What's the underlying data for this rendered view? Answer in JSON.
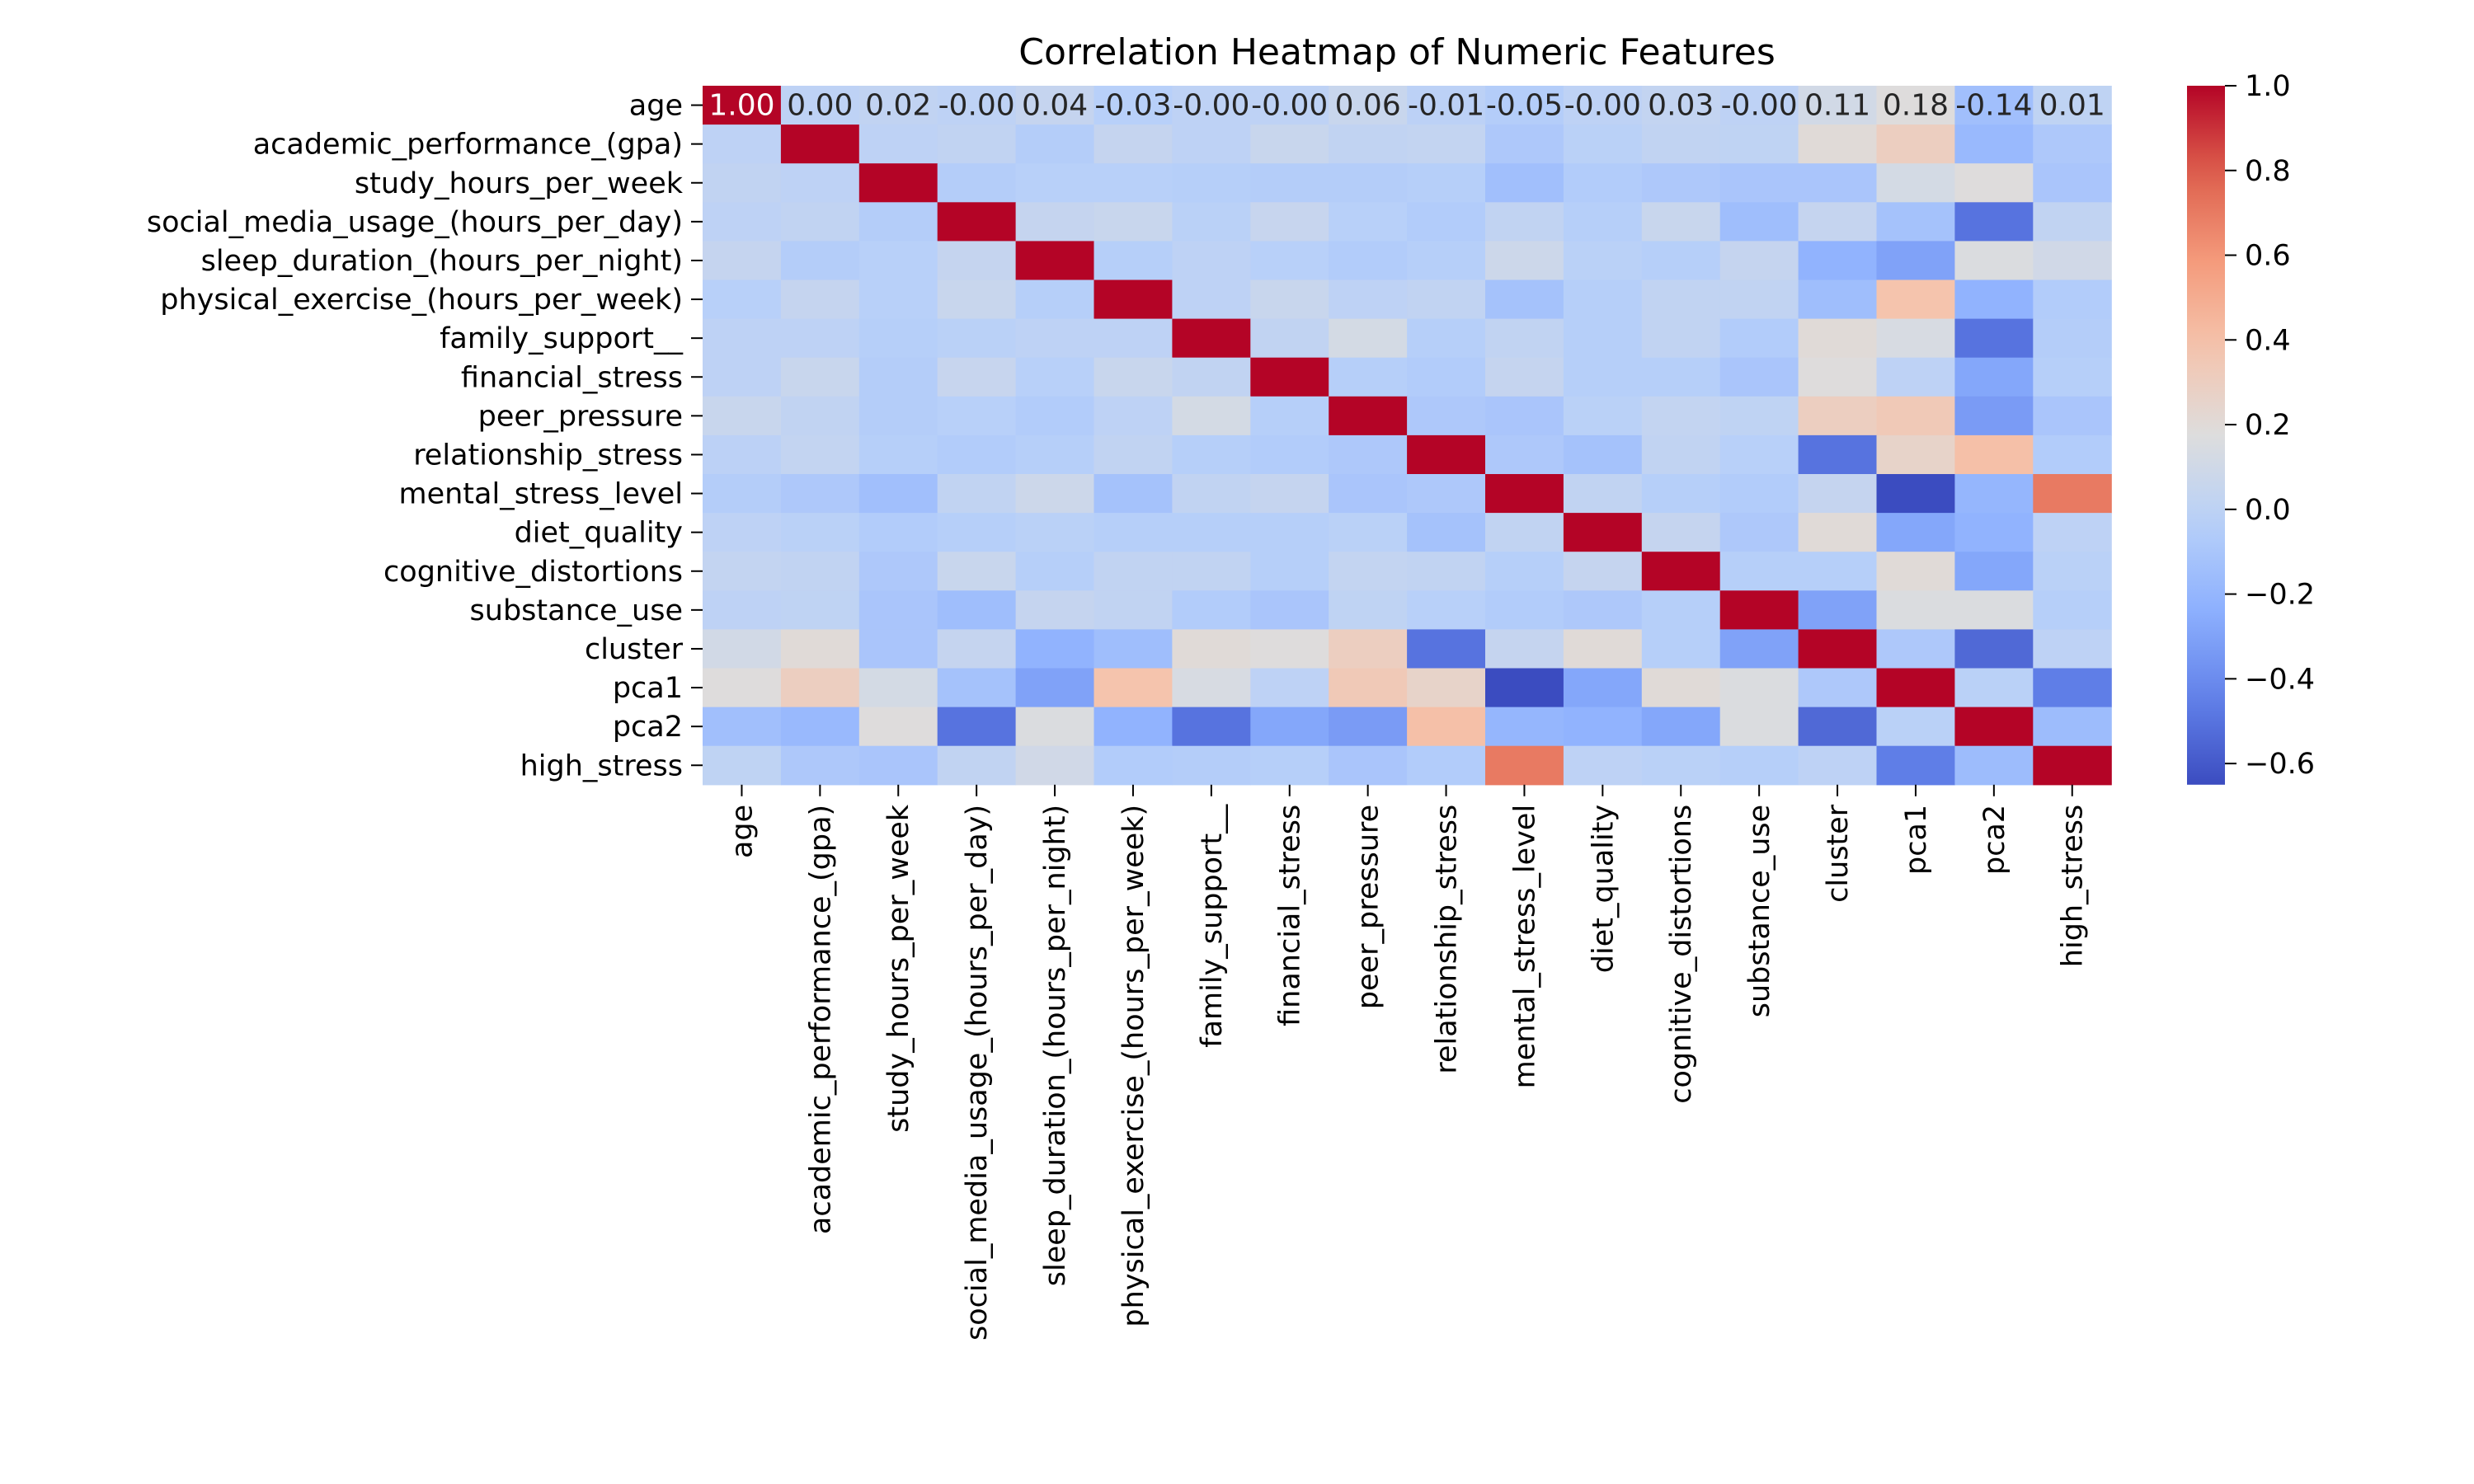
{
  "chart_data": {
    "type": "heatmap",
    "title": "Correlation Heatmap of Numeric Features",
    "colormap": "coolwarm",
    "vmin": -0.65,
    "vmax": 1.0,
    "labels": [
      "age",
      "academic_performance_(gpa)",
      "study_hours_per_week",
      "social_media_usage_(hours_per_day)",
      "sleep_duration_(hours_per_night)",
      "physical_exercise_(hours_per_week)",
      "family_support__",
      "financial_stress",
      "peer_pressure",
      "relationship_stress",
      "mental_stress_level",
      "diet_quality",
      "cognitive_distortions",
      "substance_use",
      "cluster",
      "pca1",
      "pca2",
      "high_stress"
    ],
    "annotations_row0": [
      "1.00",
      "0.00",
      "0.02",
      "-0.00",
      "0.04",
      "-0.03",
      "-0.00",
      "-0.00",
      "0.06",
      "-0.01",
      "-0.05",
      "-0.00",
      "0.03",
      "-0.00",
      "0.11",
      "0.18",
      "-0.14",
      "0.01"
    ],
    "matrix": [
      [
        1.0,
        0.0,
        0.02,
        -0.0,
        0.04,
        -0.03,
        -0.0,
        -0.0,
        0.06,
        -0.01,
        -0.05,
        -0.0,
        0.03,
        -0.0,
        0.11,
        0.18,
        -0.14,
        0.01
      ],
      [
        0.0,
        1.0,
        0.0,
        0.02,
        -0.05,
        0.04,
        0.0,
        0.06,
        0.02,
        0.03,
        -0.08,
        -0.02,
        0.02,
        0.01,
        0.2,
        0.3,
        -0.18,
        -0.08
      ],
      [
        0.02,
        0.0,
        1.0,
        -0.05,
        -0.03,
        -0.03,
        -0.04,
        -0.05,
        -0.05,
        -0.04,
        -0.14,
        -0.06,
        -0.08,
        -0.1,
        -0.1,
        0.12,
        0.18,
        -0.1
      ],
      [
        -0.0,
        0.02,
        -0.05,
        1.0,
        0.04,
        0.06,
        -0.02,
        0.05,
        -0.03,
        -0.06,
        0.02,
        -0.04,
        0.06,
        -0.15,
        0.04,
        -0.12,
        -0.5,
        0.02
      ],
      [
        0.04,
        -0.05,
        -0.03,
        0.04,
        1.0,
        -0.04,
        0.0,
        -0.03,
        -0.06,
        -0.04,
        0.08,
        -0.02,
        -0.04,
        0.04,
        -0.22,
        -0.3,
        0.16,
        0.1
      ],
      [
        -0.03,
        0.04,
        -0.03,
        0.06,
        -0.04,
        1.0,
        0.0,
        0.06,
        0.0,
        0.02,
        -0.12,
        -0.04,
        0.02,
        0.02,
        -0.15,
        0.38,
        -0.22,
        -0.06
      ],
      [
        -0.0,
        0.0,
        -0.04,
        -0.02,
        0.0,
        0.0,
        1.0,
        0.02,
        0.12,
        -0.04,
        0.02,
        -0.04,
        0.02,
        -0.06,
        0.2,
        0.14,
        -0.5,
        -0.05
      ],
      [
        -0.0,
        0.06,
        -0.05,
        0.05,
        -0.03,
        0.06,
        0.02,
        1.0,
        -0.04,
        -0.06,
        0.04,
        -0.04,
        -0.04,
        -0.1,
        0.18,
        0.0,
        -0.28,
        -0.04
      ],
      [
        0.06,
        0.02,
        -0.05,
        -0.03,
        -0.06,
        0.0,
        0.12,
        -0.04,
        1.0,
        -0.08,
        -0.1,
        -0.02,
        0.03,
        0.01,
        0.3,
        0.34,
        -0.33,
        -0.1
      ],
      [
        -0.01,
        0.03,
        -0.04,
        -0.06,
        -0.04,
        0.02,
        -0.04,
        -0.06,
        -0.08,
        1.0,
        -0.08,
        -0.12,
        0.02,
        -0.03,
        -0.5,
        0.26,
        0.4,
        -0.06
      ],
      [
        -0.05,
        -0.08,
        -0.14,
        0.02,
        0.08,
        -0.12,
        0.02,
        0.04,
        -0.1,
        -0.08,
        1.0,
        0.02,
        -0.04,
        -0.06,
        0.04,
        -0.65,
        -0.2,
        0.7
      ],
      [
        -0.0,
        -0.02,
        -0.06,
        -0.04,
        -0.02,
        -0.04,
        -0.04,
        -0.04,
        -0.02,
        -0.12,
        0.02,
        1.0,
        0.04,
        -0.08,
        0.2,
        -0.28,
        -0.22,
        0.0
      ],
      [
        0.03,
        0.02,
        -0.08,
        0.06,
        -0.04,
        0.02,
        0.02,
        -0.04,
        0.03,
        0.02,
        -0.04,
        0.04,
        1.0,
        -0.04,
        -0.04,
        0.2,
        -0.28,
        -0.02
      ],
      [
        -0.0,
        0.01,
        -0.1,
        -0.15,
        0.04,
        0.02,
        -0.06,
        -0.1,
        0.01,
        -0.03,
        -0.06,
        -0.08,
        -0.04,
        1.0,
        -0.3,
        0.16,
        0.16,
        -0.04
      ],
      [
        0.11,
        0.2,
        -0.1,
        0.04,
        -0.22,
        -0.15,
        0.2,
        0.18,
        0.3,
        -0.5,
        0.04,
        0.2,
        -0.04,
        -0.3,
        1.0,
        -0.08,
        -0.54,
        0.0
      ],
      [
        0.18,
        0.3,
        0.12,
        -0.12,
        -0.3,
        0.38,
        0.14,
        0.0,
        0.34,
        0.26,
        -0.65,
        -0.28,
        0.2,
        0.16,
        -0.08,
        1.0,
        -0.02,
        -0.46
      ],
      [
        -0.14,
        -0.18,
        0.18,
        -0.5,
        0.16,
        -0.22,
        -0.5,
        -0.28,
        -0.33,
        0.4,
        -0.2,
        -0.22,
        -0.28,
        0.16,
        -0.54,
        -0.02,
        1.0,
        -0.16
      ],
      [
        0.01,
        -0.08,
        -0.1,
        0.02,
        0.1,
        -0.06,
        -0.05,
        -0.04,
        -0.1,
        -0.06,
        0.7,
        0.0,
        -0.02,
        -0.04,
        0.0,
        -0.46,
        -0.16,
        1.0
      ]
    ],
    "colorbar_ticks": [
      "1.0",
      "0.8",
      "0.6",
      "0.4",
      "0.2",
      "0.0",
      "−0.2",
      "−0.4",
      "−0.6"
    ],
    "colorbar_tick_values": [
      1.0,
      0.8,
      0.6,
      0.4,
      0.2,
      0.0,
      -0.2,
      -0.4,
      -0.6
    ]
  }
}
